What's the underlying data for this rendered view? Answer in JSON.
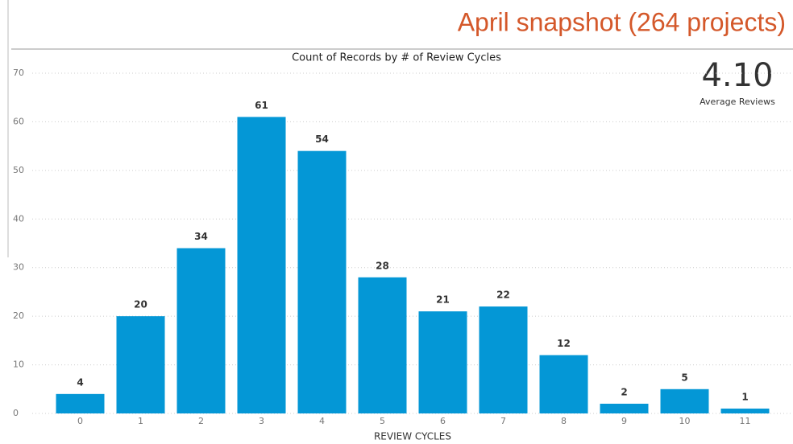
{
  "header": {
    "title": "April snapshot (264 projects)"
  },
  "kpi": {
    "value": "4.10",
    "label": "Average Reviews"
  },
  "chart_data": {
    "type": "bar",
    "title": "Count of Records by # of Review Cycles",
    "x_label": "REVIEW CYCLES",
    "categories": [
      "0",
      "1",
      "2",
      "3",
      "4",
      "5",
      "6",
      "7",
      "8",
      "9",
      "10",
      "11"
    ],
    "values": [
      4,
      20,
      34,
      61,
      54,
      28,
      21,
      22,
      12,
      2,
      5,
      1
    ],
    "color": "#0497d6",
    "ylim": [
      0,
      70
    ],
    "yticks": [
      0,
      10,
      20,
      30,
      40,
      50,
      60,
      70
    ],
    "grid": true
  }
}
